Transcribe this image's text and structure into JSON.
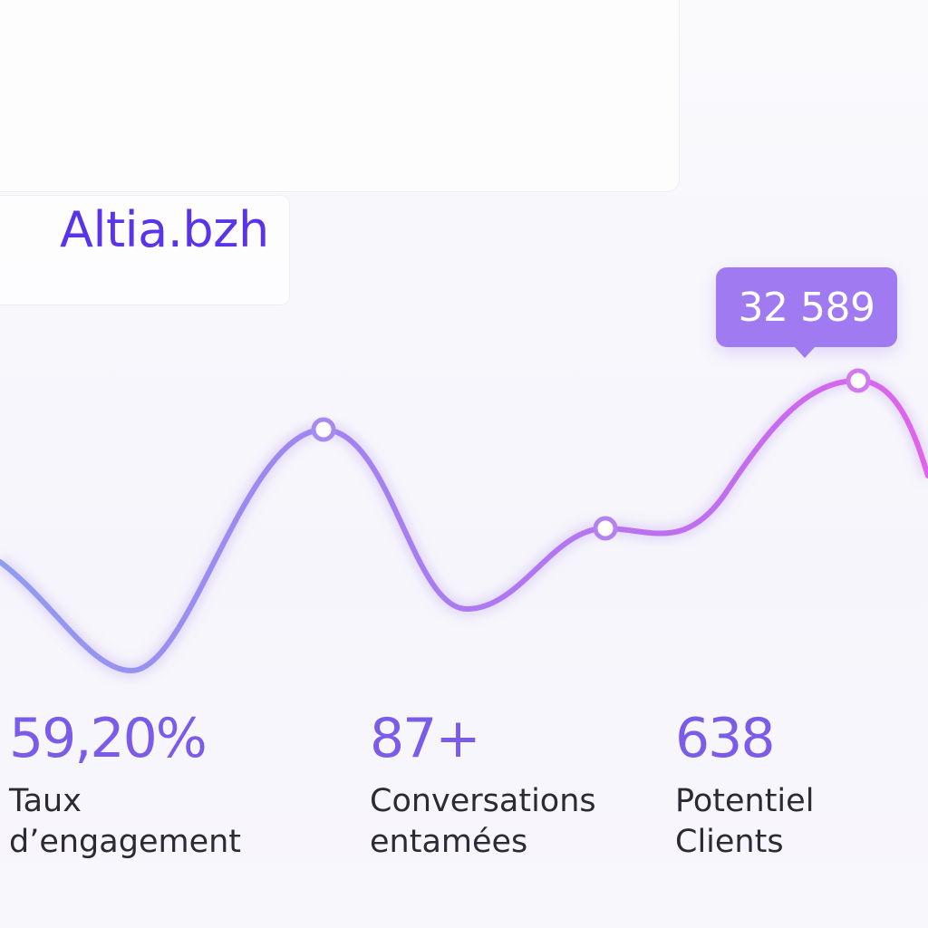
{
  "brand": "Altia.bzh",
  "tooltip": {
    "value": "32 589"
  },
  "stats": [
    {
      "value": "59,20%",
      "label": "Taux\nd’engagement"
    },
    {
      "value": "87+",
      "label": "Conversations\nentamées"
    },
    {
      "value": "638",
      "label": "Potentiel Clients"
    }
  ],
  "colors": {
    "brand": "#5a34e8",
    "line_start": "#8f9cf0",
    "line_mid": "#a77df0",
    "line_end": "#e064ec",
    "tooltip_bg": "#a07af0",
    "stat_value": "#7b5ce8"
  }
}
